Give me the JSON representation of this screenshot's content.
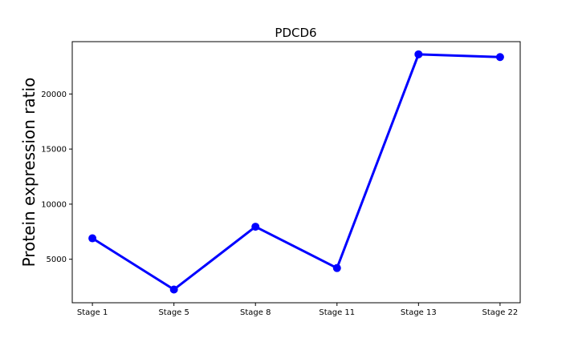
{
  "chart_data": {
    "type": "line",
    "title": "PDCD6",
    "xlabel": "",
    "ylabel": "Protein expression ratio",
    "categories": [
      "Stage 1",
      "Stage 5",
      "Stage 8",
      "Stage 11",
      "Stage 13",
      "Stage 22"
    ],
    "series": [
      {
        "name": "PDCD6",
        "color": "#0000ff",
        "values": [
          6900,
          2250,
          7950,
          4200,
          23600,
          23350
        ]
      }
    ],
    "yticks": [
      5000,
      10000,
      15000,
      20000
    ],
    "ylim": [
      1050,
      24750
    ],
    "grid": false,
    "legend": "none"
  }
}
